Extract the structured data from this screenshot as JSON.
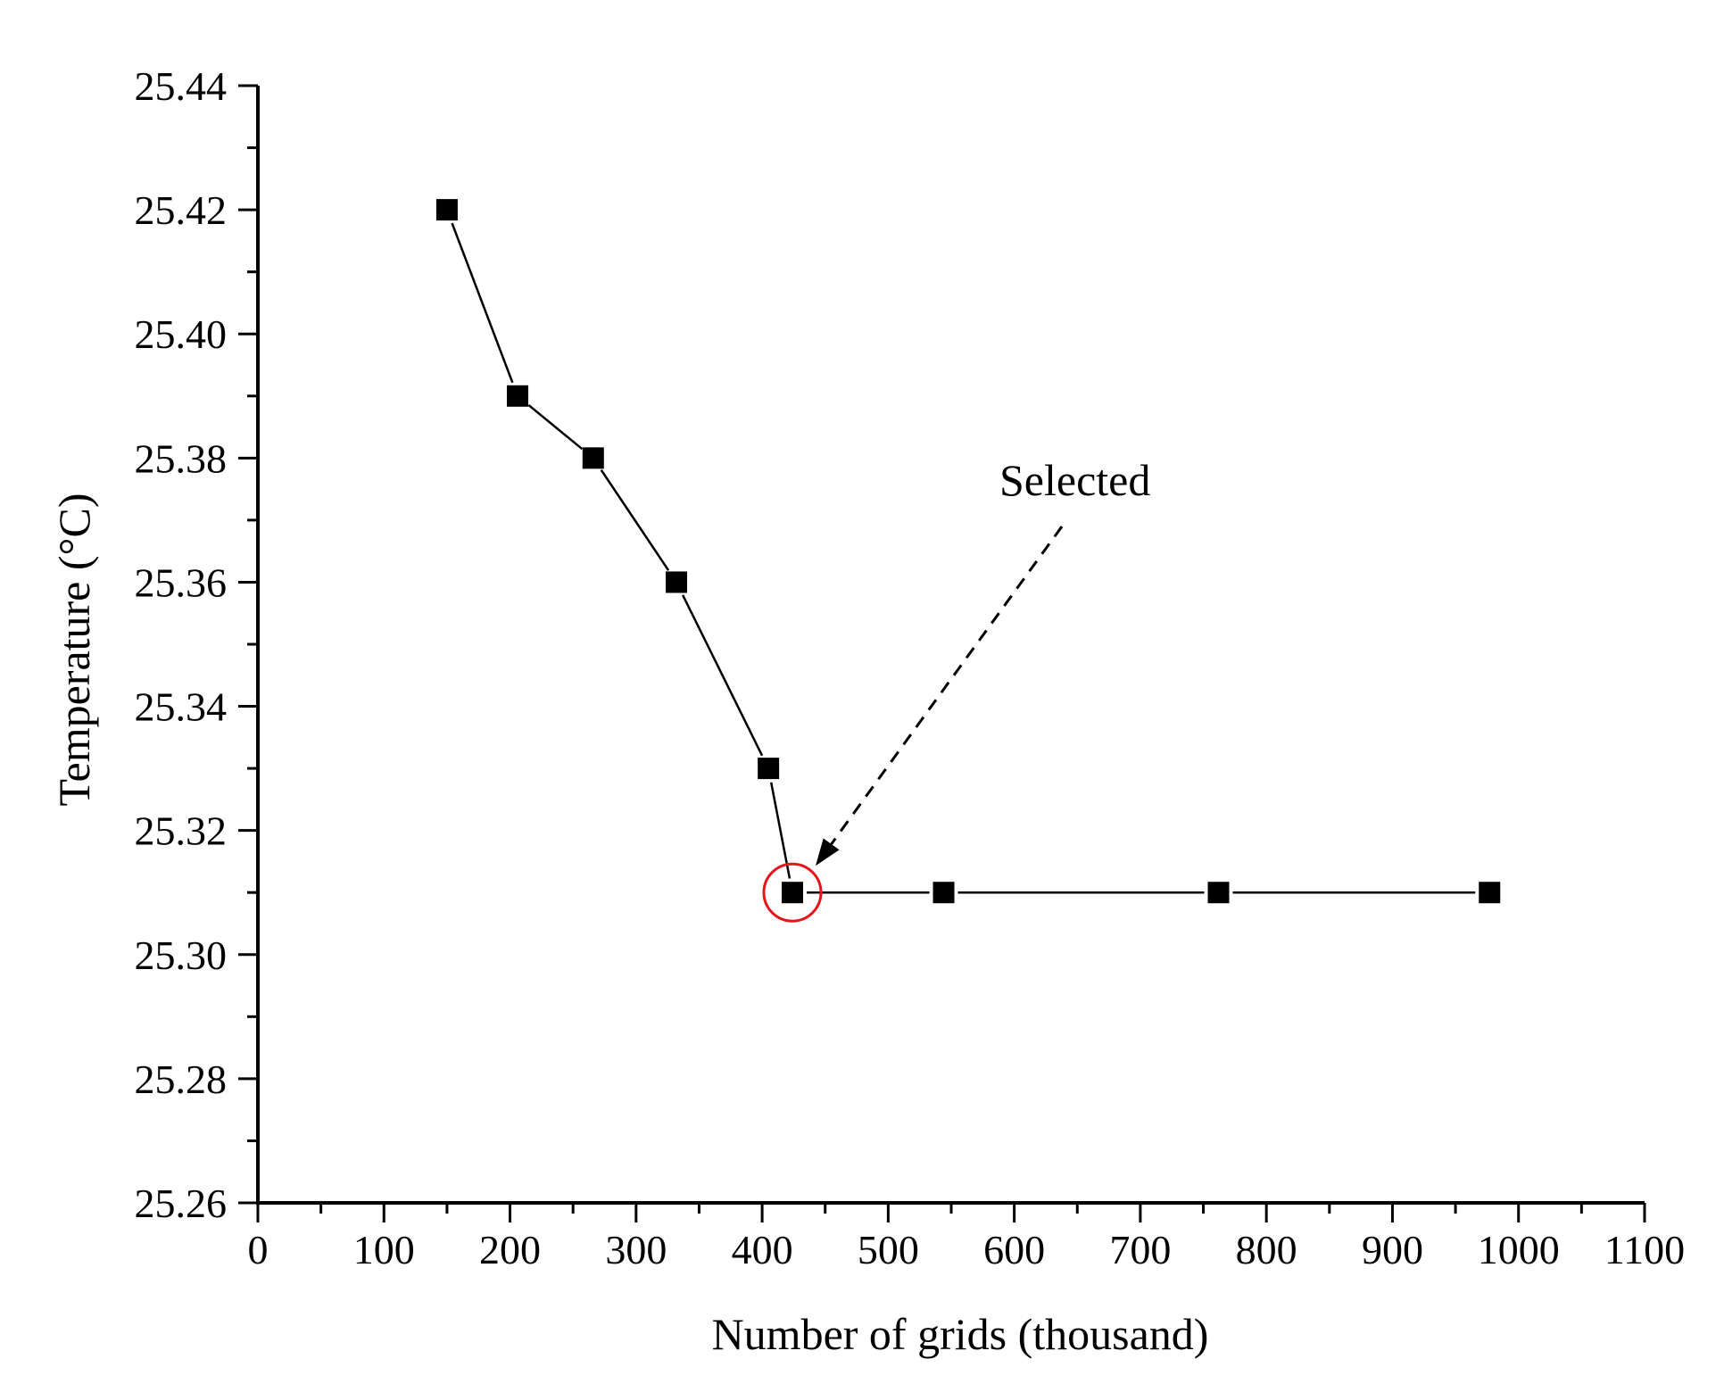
{
  "chart_data": {
    "type": "line",
    "title": "",
    "xlabel": "Number of grids (thousand)",
    "ylabel": "Temperature (°C)",
    "xlim": [
      0,
      1100
    ],
    "ylim": [
      25.26,
      25.44
    ],
    "x_ticks": [
      0,
      100,
      200,
      300,
      400,
      500,
      600,
      700,
      800,
      900,
      1000,
      1100
    ],
    "y_ticks": [
      25.26,
      25.28,
      25.3,
      25.32,
      25.34,
      25.36,
      25.38,
      25.4,
      25.42,
      25.44
    ],
    "x_tick_labels": [
      "0",
      "100",
      "200",
      "300",
      "400",
      "500",
      "600",
      "700",
      "800",
      "900",
      "1000",
      "1100"
    ],
    "y_tick_labels": [
      "25.26",
      "25.28",
      "25.30",
      "25.32",
      "25.34",
      "25.36",
      "25.38",
      "25.40",
      "25.42",
      "25.44"
    ],
    "grid": false,
    "series": [
      {
        "name": "Temperature",
        "marker": "square",
        "color": "#000000",
        "x": [
          150,
          206,
          266,
          332,
          405,
          424,
          544,
          762,
          977
        ],
        "y": [
          25.42,
          25.39,
          25.38,
          25.36,
          25.33,
          25.31,
          25.31,
          25.31,
          25.31
        ]
      }
    ],
    "annotations": [
      {
        "text": "Selected",
        "target_index": 5,
        "arrow_style": "dashed",
        "highlight_color": "#e8141c"
      }
    ]
  }
}
